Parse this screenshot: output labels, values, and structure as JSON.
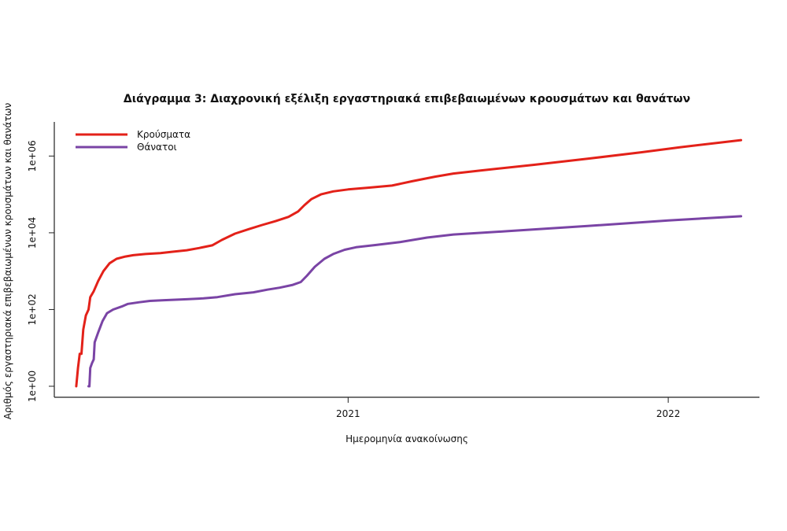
{
  "chart_data": {
    "type": "line",
    "title": "Διάγραμμα 3: Διαχρονική εξέλιξη εργαστηριακά επιβεβαιωμένων κρουσμάτων και θανάτων",
    "xlabel": "Ημερομηνία ανακοίνωσης",
    "ylabel": "Αριθμός εργαστηριακά επιβεβαιωμένων κρουσμάτων και θανάτων",
    "y_scale": "log",
    "ylim": [
      1,
      4000000
    ],
    "xlim": [
      "2020-02-01",
      "2022-04-15"
    ],
    "x_ticks": [
      {
        "date": "2021-01-01",
        "label": "2021"
      },
      {
        "date": "2022-01-01",
        "label": "2022"
      }
    ],
    "y_ticks": [
      {
        "value": 1,
        "label": "1e+00"
      },
      {
        "value": 100,
        "label": "1e+02"
      },
      {
        "value": 10000,
        "label": "1e+04"
      },
      {
        "value": 1000000,
        "label": "1e+06"
      }
    ],
    "grid": false,
    "legend": "top-left",
    "series": [
      {
        "name": "Κρούσματα",
        "color": "#e32119",
        "points": [
          [
            "2020-02-26",
            1
          ],
          [
            "2020-02-28",
            3
          ],
          [
            "2020-03-01",
            7
          ],
          [
            "2020-03-03",
            7
          ],
          [
            "2020-03-05",
            30
          ],
          [
            "2020-03-08",
            70
          ],
          [
            "2020-03-11",
            100
          ],
          [
            "2020-03-13",
            210
          ],
          [
            "2020-03-17",
            300
          ],
          [
            "2020-03-22",
            550
          ],
          [
            "2020-03-28",
            1000
          ],
          [
            "2020-04-04",
            1600
          ],
          [
            "2020-04-12",
            2100
          ],
          [
            "2020-04-22",
            2400
          ],
          [
            "2020-05-01",
            2600
          ],
          [
            "2020-05-15",
            2800
          ],
          [
            "2020-06-01",
            2950
          ],
          [
            "2020-06-15",
            3200
          ],
          [
            "2020-07-01",
            3500
          ],
          [
            "2020-07-15",
            4000
          ],
          [
            "2020-07-30",
            4700
          ],
          [
            "2020-08-10",
            6500
          ],
          [
            "2020-08-25",
            9500
          ],
          [
            "2020-09-10",
            12500
          ],
          [
            "2020-09-25",
            16000
          ],
          [
            "2020-10-10",
            20000
          ],
          [
            "2020-10-25",
            26000
          ],
          [
            "2020-11-05",
            36000
          ],
          [
            "2020-11-12",
            52000
          ],
          [
            "2020-11-20",
            75000
          ],
          [
            "2020-12-01",
            100000
          ],
          [
            "2020-12-15",
            120000
          ],
          [
            "2021-01-01",
            135000
          ],
          [
            "2021-01-25",
            150000
          ],
          [
            "2021-02-20",
            170000
          ],
          [
            "2021-03-15",
            220000
          ],
          [
            "2021-04-10",
            290000
          ],
          [
            "2021-05-01",
            350000
          ],
          [
            "2021-06-01",
            420000
          ],
          [
            "2021-08-01",
            590000
          ],
          [
            "2021-10-01",
            850000
          ],
          [
            "2021-12-01",
            1250000
          ],
          [
            "2022-01-15",
            1700000
          ],
          [
            "2022-03-01",
            2250000
          ],
          [
            "2022-03-25",
            2600000
          ]
        ]
      },
      {
        "name": "Θάνατοι",
        "color": "#7a44a5",
        "points": [
          [
            "2020-03-11",
            1
          ],
          [
            "2020-03-12",
            1
          ],
          [
            "2020-03-13",
            3
          ],
          [
            "2020-03-15",
            4
          ],
          [
            "2020-03-17",
            5
          ],
          [
            "2020-03-18",
            14
          ],
          [
            "2020-03-22",
            25
          ],
          [
            "2020-03-27",
            50
          ],
          [
            "2020-04-01",
            80
          ],
          [
            "2020-04-08",
            100
          ],
          [
            "2020-04-18",
            120
          ],
          [
            "2020-04-25",
            140
          ],
          [
            "2020-05-08",
            155
          ],
          [
            "2020-05-20",
            168
          ],
          [
            "2020-06-05",
            175
          ],
          [
            "2020-07-01",
            185
          ],
          [
            "2020-07-20",
            195
          ],
          [
            "2020-08-05",
            210
          ],
          [
            "2020-08-25",
            250
          ],
          [
            "2020-09-15",
            280
          ],
          [
            "2020-10-01",
            330
          ],
          [
            "2020-10-15",
            370
          ],
          [
            "2020-10-30",
            440
          ],
          [
            "2020-11-08",
            520
          ],
          [
            "2020-11-15",
            760
          ],
          [
            "2020-11-24",
            1300
          ],
          [
            "2020-12-05",
            2100
          ],
          [
            "2020-12-15",
            2800
          ],
          [
            "2020-12-28",
            3600
          ],
          [
            "2021-01-10",
            4200
          ],
          [
            "2021-02-01",
            4800
          ],
          [
            "2021-03-01",
            5700
          ],
          [
            "2021-04-01",
            7500
          ],
          [
            "2021-05-01",
            9000
          ],
          [
            "2021-07-01",
            11000
          ],
          [
            "2021-10-01",
            15000
          ],
          [
            "2022-01-01",
            21000
          ],
          [
            "2022-03-25",
            27000
          ]
        ]
      }
    ]
  }
}
